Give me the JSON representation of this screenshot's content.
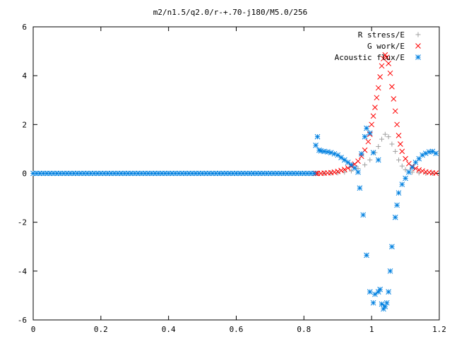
{
  "chart_data": {
    "type": "scatter",
    "title": "m2/n1.5/q2.0/r-+.70-j180/M5.0/256",
    "xlim": [
      0,
      1.2
    ],
    "ylim": [
      -6,
      6
    ],
    "x_ticks": [
      "0",
      "0.2",
      "0.4",
      "0.6",
      "0.8",
      "1",
      "1.2"
    ],
    "y_ticks": [
      "6",
      "4",
      "2",
      "0",
      "-2",
      "-4",
      "-6"
    ],
    "legend_position": "top-right",
    "series": [
      {
        "name": "R stress/E",
        "marker": "plus",
        "color": "#a0a0a0",
        "points": [
          [
            0.84,
            0.0
          ],
          [
            0.86,
            0.0
          ],
          [
            0.88,
            0.01
          ],
          [
            0.9,
            0.02
          ],
          [
            0.92,
            0.05
          ],
          [
            0.94,
            0.1
          ],
          [
            0.96,
            0.2
          ],
          [
            0.98,
            0.35
          ],
          [
            0.995,
            0.55
          ],
          [
            1.01,
            0.85
          ],
          [
            1.02,
            1.1
          ],
          [
            1.03,
            1.4
          ],
          [
            1.04,
            1.6
          ],
          [
            1.05,
            1.5
          ],
          [
            1.06,
            1.2
          ],
          [
            1.07,
            0.9
          ],
          [
            1.08,
            0.55
          ],
          [
            1.09,
            0.3
          ],
          [
            1.1,
            0.15
          ],
          [
            1.12,
            0.05
          ],
          [
            1.14,
            0.02
          ],
          [
            1.16,
            0.0
          ],
          [
            1.18,
            0.0
          ]
        ]
      },
      {
        "name": "G work/E",
        "marker": "x",
        "color": "#ff0000",
        "points": [
          [
            0.835,
            0.0
          ],
          [
            0.84,
            0.0
          ],
          [
            0.85,
            0.0
          ],
          [
            0.86,
            0.01
          ],
          [
            0.87,
            0.02
          ],
          [
            0.88,
            0.03
          ],
          [
            0.89,
            0.05
          ],
          [
            0.9,
            0.08
          ],
          [
            0.91,
            0.12
          ],
          [
            0.92,
            0.16
          ],
          [
            0.93,
            0.22
          ],
          [
            0.94,
            0.3
          ],
          [
            0.95,
            0.38
          ],
          [
            0.96,
            0.5
          ],
          [
            0.97,
            0.7
          ],
          [
            0.98,
            0.95
          ],
          [
            0.99,
            1.3
          ],
          [
            0.995,
            1.6
          ],
          [
            1.0,
            2.0
          ],
          [
            1.005,
            2.35
          ],
          [
            1.01,
            2.7
          ],
          [
            1.015,
            3.1
          ],
          [
            1.02,
            3.5
          ],
          [
            1.025,
            3.95
          ],
          [
            1.03,
            4.4
          ],
          [
            1.035,
            4.7
          ],
          [
            1.04,
            4.85
          ],
          [
            1.045,
            4.75
          ],
          [
            1.05,
            4.5
          ],
          [
            1.055,
            4.1
          ],
          [
            1.06,
            3.55
          ],
          [
            1.065,
            3.05
          ],
          [
            1.07,
            2.55
          ],
          [
            1.075,
            2.0
          ],
          [
            1.08,
            1.55
          ],
          [
            1.085,
            1.2
          ],
          [
            1.09,
            0.9
          ],
          [
            1.1,
            0.6
          ],
          [
            1.11,
            0.4
          ],
          [
            1.12,
            0.28
          ],
          [
            1.13,
            0.2
          ],
          [
            1.14,
            0.14
          ],
          [
            1.15,
            0.1
          ],
          [
            1.16,
            0.06
          ],
          [
            1.17,
            0.04
          ],
          [
            1.18,
            0.02
          ],
          [
            1.19,
            0.01
          ]
        ]
      },
      {
        "name": "Acoustic flux/E",
        "marker": "star",
        "color": "#0080e0",
        "points": [
          [
            0.0,
            0
          ],
          [
            0.01,
            0
          ],
          [
            0.02,
            0
          ],
          [
            0.03,
            0
          ],
          [
            0.04,
            0
          ],
          [
            0.05,
            0
          ],
          [
            0.06,
            0
          ],
          [
            0.07,
            0
          ],
          [
            0.08,
            0
          ],
          [
            0.09,
            0
          ],
          [
            0.1,
            0
          ],
          [
            0.11,
            0
          ],
          [
            0.12,
            0
          ],
          [
            0.13,
            0
          ],
          [
            0.14,
            0
          ],
          [
            0.15,
            0
          ],
          [
            0.16,
            0
          ],
          [
            0.17,
            0
          ],
          [
            0.18,
            0
          ],
          [
            0.19,
            0
          ],
          [
            0.2,
            0
          ],
          [
            0.21,
            0
          ],
          [
            0.22,
            0
          ],
          [
            0.23,
            0
          ],
          [
            0.24,
            0
          ],
          [
            0.25,
            0
          ],
          [
            0.26,
            0
          ],
          [
            0.27,
            0
          ],
          [
            0.28,
            0
          ],
          [
            0.29,
            0
          ],
          [
            0.3,
            0
          ],
          [
            0.31,
            0
          ],
          [
            0.32,
            0
          ],
          [
            0.33,
            0
          ],
          [
            0.34,
            0
          ],
          [
            0.35,
            0
          ],
          [
            0.36,
            0
          ],
          [
            0.37,
            0
          ],
          [
            0.38,
            0
          ],
          [
            0.39,
            0
          ],
          [
            0.4,
            0
          ],
          [
            0.41,
            0
          ],
          [
            0.42,
            0
          ],
          [
            0.43,
            0
          ],
          [
            0.44,
            0
          ],
          [
            0.45,
            0
          ],
          [
            0.46,
            0
          ],
          [
            0.47,
            0
          ],
          [
            0.48,
            0
          ],
          [
            0.49,
            0
          ],
          [
            0.5,
            0
          ],
          [
            0.51,
            0
          ],
          [
            0.52,
            0
          ],
          [
            0.53,
            0
          ],
          [
            0.54,
            0
          ],
          [
            0.55,
            0
          ],
          [
            0.56,
            0
          ],
          [
            0.57,
            0
          ],
          [
            0.58,
            0
          ],
          [
            0.59,
            0
          ],
          [
            0.6,
            0
          ],
          [
            0.61,
            0
          ],
          [
            0.62,
            0
          ],
          [
            0.63,
            0
          ],
          [
            0.64,
            0
          ],
          [
            0.65,
            0
          ],
          [
            0.66,
            0
          ],
          [
            0.67,
            0
          ],
          [
            0.68,
            0
          ],
          [
            0.69,
            0
          ],
          [
            0.7,
            0
          ],
          [
            0.71,
            0
          ],
          [
            0.72,
            0
          ],
          [
            0.73,
            0
          ],
          [
            0.74,
            0
          ],
          [
            0.75,
            0
          ],
          [
            0.76,
            0
          ],
          [
            0.77,
            0
          ],
          [
            0.78,
            0
          ],
          [
            0.79,
            0
          ],
          [
            0.8,
            0
          ],
          [
            0.81,
            0
          ],
          [
            0.82,
            0
          ],
          [
            0.83,
            0
          ],
          [
            0.835,
            1.15
          ],
          [
            0.84,
            1.5
          ],
          [
            0.845,
            0.95
          ],
          [
            0.85,
            0.92
          ],
          [
            0.86,
            0.9
          ],
          [
            0.87,
            0.88
          ],
          [
            0.88,
            0.85
          ],
          [
            0.89,
            0.8
          ],
          [
            0.9,
            0.75
          ],
          [
            0.91,
            0.65
          ],
          [
            0.92,
            0.55
          ],
          [
            0.93,
            0.45
          ],
          [
            0.94,
            0.35
          ],
          [
            0.95,
            0.22
          ],
          [
            0.96,
            0.05
          ],
          [
            0.965,
            -0.6
          ],
          [
            0.975,
            -1.7
          ],
          [
            0.985,
            -3.35
          ],
          [
            0.995,
            -4.85
          ],
          [
            1.005,
            -5.3
          ],
          [
            1.01,
            -4.95
          ],
          [
            1.02,
            -4.85
          ],
          [
            1.025,
            -4.75
          ],
          [
            1.03,
            -5.35
          ],
          [
            1.035,
            -5.55
          ],
          [
            1.04,
            -5.45
          ],
          [
            1.045,
            -5.3
          ],
          [
            1.05,
            -4.85
          ],
          [
            1.055,
            -4.0
          ],
          [
            1.06,
            -3.0
          ],
          [
            1.07,
            -1.8
          ],
          [
            1.075,
            -1.3
          ],
          [
            1.08,
            -0.8
          ],
          [
            1.09,
            -0.45
          ],
          [
            1.1,
            -0.2
          ],
          [
            1.11,
            0.05
          ],
          [
            1.12,
            0.25
          ],
          [
            1.13,
            0.45
          ],
          [
            1.14,
            0.6
          ],
          [
            1.15,
            0.75
          ],
          [
            1.16,
            0.82
          ],
          [
            1.17,
            0.88
          ],
          [
            1.18,
            0.9
          ],
          [
            1.19,
            0.82
          ],
          [
            0.97,
            0.8
          ],
          [
            0.98,
            1.5
          ],
          [
            0.985,
            1.85
          ],
          [
            0.995,
            1.65
          ],
          [
            1.005,
            0.85
          ],
          [
            1.02,
            0.55
          ]
        ]
      }
    ]
  }
}
